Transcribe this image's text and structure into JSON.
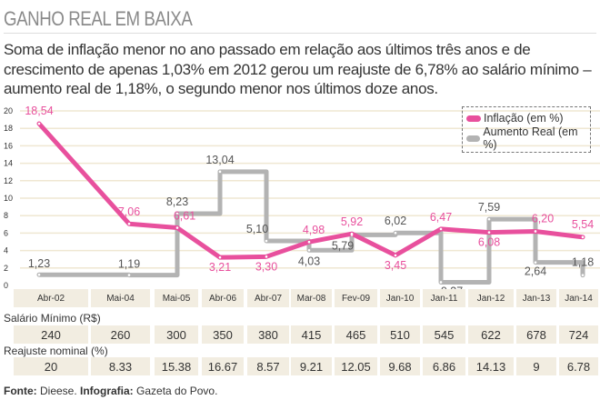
{
  "header": {
    "title": "GANHO REAL EM BAIXA",
    "intro": "Soma de inflação menor no ano passado em relação aos últimos três anos e de crescimento de apenas 1,03% em 2012 gerou um reajuste de 6,78% ao salário mínimo – aumento real de 1,18%, o segundo menor nos últimos doze anos."
  },
  "chart_data": {
    "type": "line",
    "categories": [
      "Abr-02",
      "Mai-04",
      "Mai-05",
      "Abr-06",
      "Abr-07",
      "Mar-08",
      "Fev-09",
      "Jan-10",
      "Jan-11",
      "Jan-12",
      "Jan-13",
      "Jan-14"
    ],
    "ylim": [
      0,
      20
    ],
    "yticks": [
      "0",
      "2",
      "4",
      "6",
      "8",
      "10",
      "12",
      "14",
      "16",
      "18",
      "20"
    ],
    "grid": true,
    "legend_position": "top-right",
    "series": [
      {
        "name": "Inflação (em %)",
        "color": "#e8509d",
        "style": "line",
        "values": [
          18.54,
          7.06,
          6.61,
          3.21,
          3.3,
          4.98,
          5.92,
          3.45,
          6.47,
          6.08,
          6.2,
          5.54
        ],
        "labels": [
          "18,54",
          "7,06",
          "6,61",
          "3,21",
          "3,30",
          "4,98",
          "5,92",
          "3,45",
          "6,47",
          "6,08",
          "6,20",
          "5,54"
        ]
      },
      {
        "name": "Aumento Real (em %)",
        "color": "#b3b3b3",
        "style": "step",
        "values": [
          1.23,
          1.19,
          8.23,
          13.04,
          5.1,
          4.03,
          5.79,
          6.02,
          0.37,
          7.59,
          2.64,
          1.18
        ],
        "labels": [
          "1,23",
          "1,19",
          "8,23",
          "13,04",
          "5,10",
          "4,03",
          "5,79",
          "6,02",
          "0,37",
          "7,59",
          "2,64",
          "1,18"
        ]
      }
    ]
  },
  "table": {
    "salario_label": "Salário Mínimo (R$)",
    "salario": [
      "240",
      "260",
      "300",
      "350",
      "380",
      "415",
      "465",
      "510",
      "545",
      "622",
      "678",
      "724"
    ],
    "reajuste_label": "Reajuste nominal (%)",
    "reajuste": [
      "20",
      "8.33",
      "15.38",
      "16.67",
      "8.57",
      "9.21",
      "12.05",
      "9.68",
      "6.86",
      "14.13",
      "9",
      "6.78"
    ]
  },
  "footer": {
    "fonte_label": "Fonte:",
    "fonte": " Dieese. ",
    "info_label": "Infografia:",
    "info": " Gazeta do Povo."
  }
}
